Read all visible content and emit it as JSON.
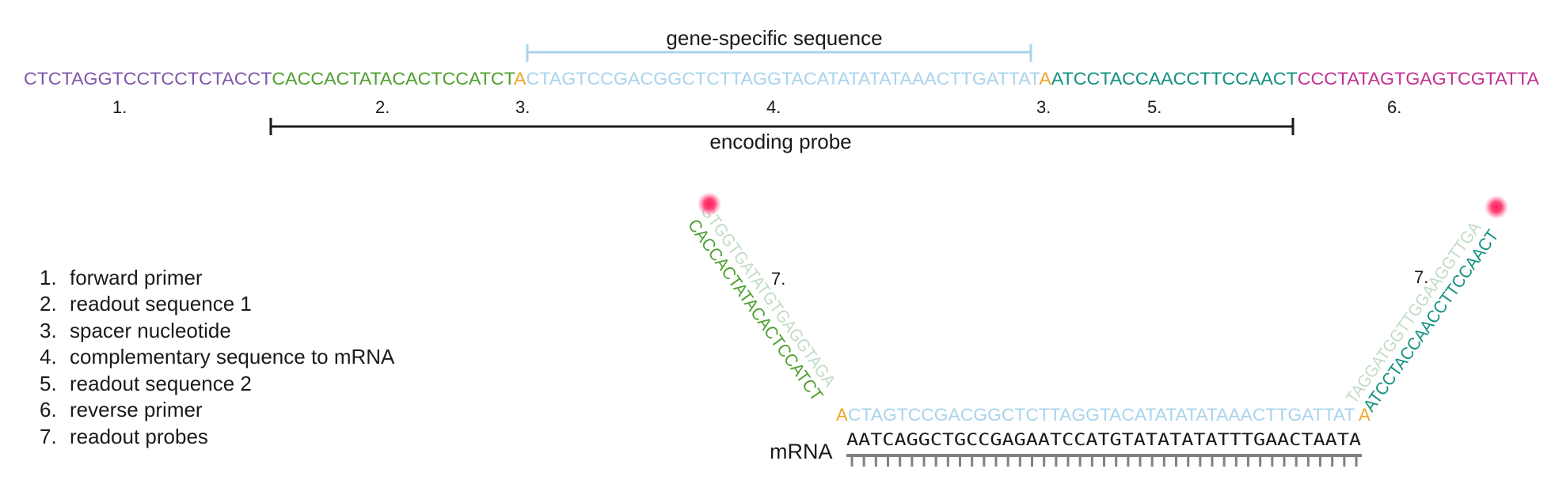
{
  "top_strand": {
    "forward_primer": "CTCTAGGTCCTCCTCTACCT",
    "readout_1": "CACCACTATACACTCCATCT",
    "spacer": "A",
    "gene_specific": "CTAGTCCGACGGCTCTTAGGTACATATATATAAACTTGATTAT",
    "readout_2": "ATCCTACCAACCTTCCAACT",
    "reverse_primer": "CCCTATAGTGAGTCGTATTA"
  },
  "region_numbers": [
    "1.",
    "2.",
    "3.",
    "4.",
    "3.",
    "5.",
    "6."
  ],
  "brackets": {
    "gene_specific_label": "gene-specific sequence",
    "encoding_probe_label": "encoding probe"
  },
  "legend": [
    {
      "num": "1.",
      "text": "forward primer"
    },
    {
      "num": "2.",
      "text": "readout sequence 1"
    },
    {
      "num": "3.",
      "text": "spacer nucleotide"
    },
    {
      "num": "4.",
      "text": "complementary sequence to mRNA"
    },
    {
      "num": "5.",
      "text": "readout sequence 2"
    },
    {
      "num": "6.",
      "text": "reverse primer"
    },
    {
      "num": "7.",
      "text": "readout probes"
    }
  ],
  "bottom": {
    "mrna_label": "mRNA",
    "mrna_sequence": "AATCAGGCTGCCGAGAATCCATGTATATATATTTGAACTAATA",
    "probe_sequence": "CTAGTCCGACGGCTCTTAGGTACATATATATAAACTTGATTAT",
    "spacer": "A",
    "left_arm": "CACCACTATACACTCCATCT",
    "left_readout_probe": "GTGGTGATATGTGAGGTAGA",
    "right_arm": "ATCCTACCAACCTTCCAACT",
    "right_readout_probe": "TAGGATGGTTGGAAGGTTGA",
    "readout_probe_number": "7."
  },
  "colors": {
    "forward_primer": "#7e57a8",
    "readout_1": "#4e9f2f",
    "spacer": "#f0a626",
    "gene_specific": "#a9d3ec",
    "readout_2": "#11907f",
    "reverse_primer": "#c2318f",
    "readout_probe": "#c1dcc6",
    "bracket_blue": "#a9d3ec",
    "black": "#1a1a1a",
    "mrna_backbone": "#808080",
    "fluorophore": "#ff1f5a"
  }
}
